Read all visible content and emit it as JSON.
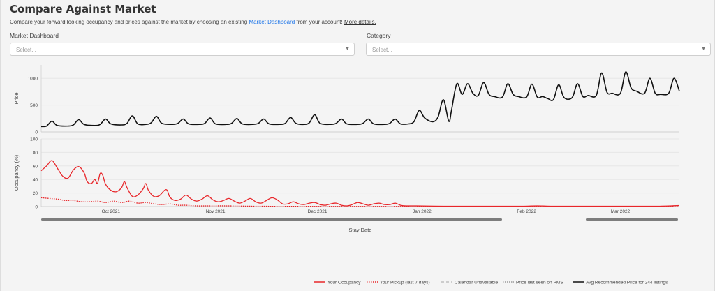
{
  "header": {
    "title": "Compare Against Market",
    "description_prefix": "Compare your forward looking occupancy and prices against the market by choosing an existing",
    "dashboard_link": "Market Dashboard",
    "description_suffix": "from your account!",
    "more_link": "More details."
  },
  "filters": {
    "market_label": "Market Dashboard",
    "market_placeholder": "Select...",
    "category_label": "Category",
    "category_placeholder": "Select..."
  },
  "chart_data": {
    "type": "line",
    "xlabel": "Stay Date",
    "x_ticks": [
      "Oct 2021",
      "Nov 2021",
      "Dec 2021",
      "Jan 2022",
      "Feb 2022",
      "Mar 2022"
    ],
    "price_panel": {
      "ylabel": "Price",
      "ylim": [
        0,
        1250
      ],
      "y_ticks": [
        0,
        500,
        1000
      ],
      "series": [
        {
          "name": "Avg Recommended Price for 244 listings",
          "color": "#111111",
          "points": [
            [
              0,
              100
            ],
            [
              2,
              110
            ],
            [
              4,
              200
            ],
            [
              6,
              120
            ],
            [
              10,
              110
            ],
            [
              12,
              130
            ],
            [
              14,
              230
            ],
            [
              16,
              140
            ],
            [
              20,
              120
            ],
            [
              22,
              140
            ],
            [
              24,
              240
            ],
            [
              26,
              150
            ],
            [
              30,
              130
            ],
            [
              32,
              160
            ],
            [
              34,
              300
            ],
            [
              36,
              150
            ],
            [
              39,
              140
            ],
            [
              41,
              170
            ],
            [
              43,
              290
            ],
            [
              45,
              160
            ],
            [
              49,
              140
            ],
            [
              51,
              160
            ],
            [
              53,
              240
            ],
            [
              55,
              150
            ],
            [
              59,
              140
            ],
            [
              61,
              160
            ],
            [
              63,
              260
            ],
            [
              65,
              150
            ],
            [
              69,
              140
            ],
            [
              71,
              160
            ],
            [
              73,
              250
            ],
            [
              75,
              150
            ],
            [
              79,
              140
            ],
            [
              81,
              160
            ],
            [
              83,
              240
            ],
            [
              85,
              150
            ],
            [
              89,
              140
            ],
            [
              91,
              160
            ],
            [
              93,
              270
            ],
            [
              95,
              160
            ],
            [
              98,
              140
            ],
            [
              100,
              170
            ],
            [
              102,
              320
            ],
            [
              104,
              160
            ],
            [
              108,
              140
            ],
            [
              110,
              160
            ],
            [
              112,
              240
            ],
            [
              114,
              150
            ],
            [
              118,
              140
            ],
            [
              120,
              160
            ],
            [
              122,
              240
            ],
            [
              124,
              150
            ],
            [
              128,
              140
            ],
            [
              130,
              160
            ],
            [
              132,
              240
            ],
            [
              134,
              150
            ],
            [
              137,
              150
            ],
            [
              139,
              190
            ],
            [
              141,
              400
            ],
            [
              143,
              260
            ],
            [
              146,
              190
            ],
            [
              148,
              280
            ],
            [
              150,
              600
            ],
            [
              152,
              200
            ],
            [
              153,
              400
            ],
            [
              155,
              900
            ],
            [
              157,
              700
            ],
            [
              159,
              900
            ],
            [
              161,
              720
            ],
            [
              163,
              680
            ],
            [
              165,
              920
            ],
            [
              167,
              700
            ],
            [
              169,
              660
            ],
            [
              172,
              650
            ],
            [
              174,
              900
            ],
            [
              176,
              700
            ],
            [
              178,
              660
            ],
            [
              181,
              650
            ],
            [
              183,
              890
            ],
            [
              185,
              650
            ],
            [
              187,
              660
            ],
            [
              189,
              620
            ],
            [
              191,
              600
            ],
            [
              193,
              880
            ],
            [
              195,
              640
            ],
            [
              198,
              640
            ],
            [
              200,
              900
            ],
            [
              202,
              660
            ],
            [
              204,
              680
            ],
            [
              207,
              680
            ],
            [
              209,
              1100
            ],
            [
              211,
              740
            ],
            [
              213,
              720
            ],
            [
              216,
              720
            ],
            [
              218,
              1120
            ],
            [
              220,
              820
            ],
            [
              222,
              760
            ],
            [
              225,
              720
            ],
            [
              227,
              1000
            ],
            [
              229,
              720
            ],
            [
              231,
              700
            ],
            [
              234,
              720
            ],
            [
              236,
              1000
            ],
            [
              238,
              760
            ]
          ]
        }
      ]
    },
    "occupancy_panel": {
      "ylabel": "Occupancy (%)",
      "ylim": [
        0,
        100
      ],
      "y_ticks": [
        0,
        20,
        40,
        60,
        80,
        100
      ],
      "series": [
        {
          "name": "Your Occupancy",
          "color": "#e8262a",
          "dash": "solid",
          "points": [
            [
              0,
              53
            ],
            [
              2,
              60
            ],
            [
              4,
              68
            ],
            [
              6,
              57
            ],
            [
              8,
              45
            ],
            [
              10,
              42
            ],
            [
              12,
              54
            ],
            [
              14,
              59
            ],
            [
              16,
              50
            ],
            [
              17,
              38
            ],
            [
              18,
              34
            ],
            [
              19,
              35
            ],
            [
              20,
              40
            ],
            [
              21,
              34
            ],
            [
              22,
              49
            ],
            [
              23,
              46
            ],
            [
              24,
              33
            ],
            [
              26,
              24
            ],
            [
              28,
              22
            ],
            [
              30,
              28
            ],
            [
              31,
              37
            ],
            [
              32,
              28
            ],
            [
              34,
              15
            ],
            [
              36,
              17
            ],
            [
              38,
              26
            ],
            [
              39,
              34
            ],
            [
              40,
              24
            ],
            [
              42,
              15
            ],
            [
              44,
              16
            ],
            [
              46,
              24
            ],
            [
              47,
              24
            ],
            [
              48,
              14
            ],
            [
              50,
              9
            ],
            [
              52,
              11
            ],
            [
              54,
              17
            ],
            [
              56,
              11
            ],
            [
              58,
              8
            ],
            [
              60,
              11
            ],
            [
              62,
              16
            ],
            [
              64,
              10
            ],
            [
              66,
              7
            ],
            [
              68,
              9
            ],
            [
              70,
              12
            ],
            [
              72,
              8
            ],
            [
              74,
              5
            ],
            [
              76,
              8
            ],
            [
              78,
              12
            ],
            [
              80,
              7
            ],
            [
              82,
              5
            ],
            [
              84,
              9
            ],
            [
              86,
              13
            ],
            [
              88,
              10
            ],
            [
              90,
              4
            ],
            [
              92,
              4
            ],
            [
              94,
              7
            ],
            [
              96,
              4
            ],
            [
              98,
              3
            ],
            [
              100,
              5
            ],
            [
              102,
              6
            ],
            [
              104,
              3
            ],
            [
              106,
              2
            ],
            [
              108,
              4
            ],
            [
              110,
              5
            ],
            [
              112,
              2
            ],
            [
              114,
              1
            ],
            [
              116,
              3
            ],
            [
              118,
              6
            ],
            [
              120,
              4
            ],
            [
              122,
              2
            ],
            [
              124,
              4
            ],
            [
              126,
              5
            ],
            [
              128,
              3
            ],
            [
              130,
              3
            ],
            [
              132,
              5
            ],
            [
              134,
              2
            ],
            [
              136,
              1
            ],
            [
              140,
              1
            ],
            [
              150,
              0.5
            ],
            [
              160,
              0.5
            ],
            [
              170,
              0.5
            ],
            [
              180,
              0.5
            ],
            [
              185,
              1
            ],
            [
              190,
              0.5
            ],
            [
              200,
              0.5
            ],
            [
              210,
              0.5
            ],
            [
              220,
              0.5
            ],
            [
              230,
              0.5
            ],
            [
              238,
              1.5
            ]
          ]
        },
        {
          "name": "Your Pickup (last 7 days)",
          "color": "#e8262a",
          "dash": "dotted",
          "points": [
            [
              0,
              13
            ],
            [
              3,
              12
            ],
            [
              6,
              11
            ],
            [
              9,
              9
            ],
            [
              12,
              9
            ],
            [
              15,
              7
            ],
            [
              18,
              7
            ],
            [
              21,
              8
            ],
            [
              24,
              6
            ],
            [
              27,
              8
            ],
            [
              30,
              6
            ],
            [
              33,
              8
            ],
            [
              36,
              5
            ],
            [
              39,
              6
            ],
            [
              42,
              4
            ],
            [
              45,
              3
            ],
            [
              48,
              4
            ],
            [
              51,
              2
            ],
            [
              54,
              2
            ],
            [
              58,
              1
            ],
            [
              62,
              1
            ],
            [
              70,
              1
            ],
            [
              80,
              0.5
            ],
            [
              100,
              0.3
            ],
            [
              140,
              0.2
            ],
            [
              238,
              0.2
            ]
          ]
        },
        {
          "name": "Calendar Unavailable",
          "color": "#c0c0c0",
          "dash": "dashed",
          "points": []
        },
        {
          "name": "Price last seen on PMS",
          "color": "#9a9a9a",
          "dash": "dotted",
          "points": []
        }
      ]
    },
    "legend": [
      "Your Occupancy",
      "Your Pickup (last 7 days)",
      "Calendar Unavailable",
      "Price last seen on PMS",
      "Avg Recommended Price for 244 listings"
    ],
    "legend_position": "bottom-right"
  }
}
